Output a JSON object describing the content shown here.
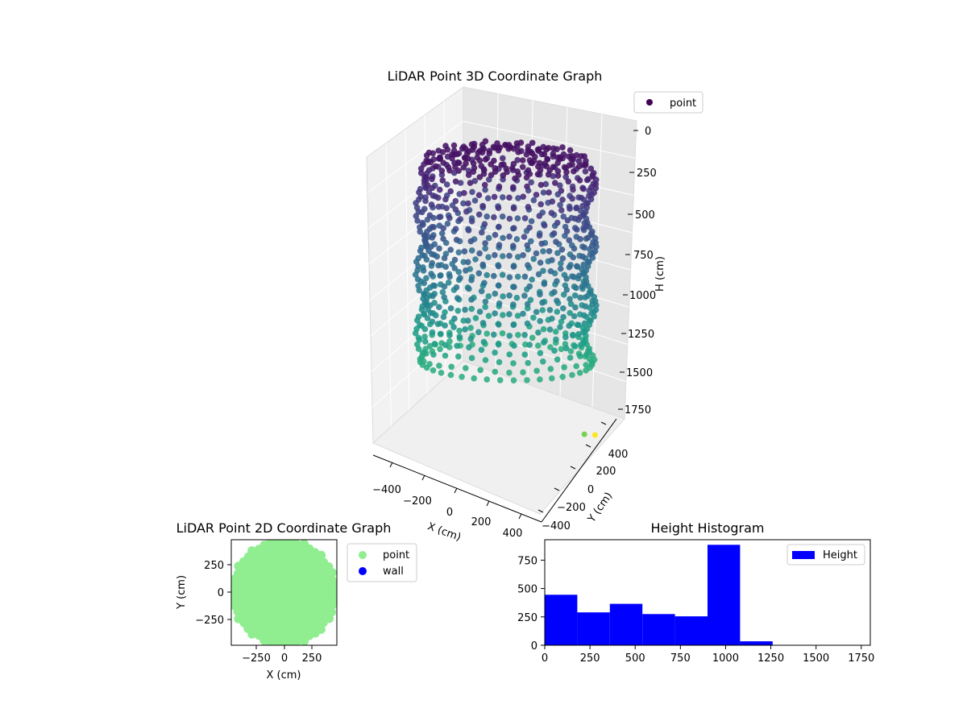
{
  "chart_data": [
    {
      "type": "scatter",
      "projection": "3d",
      "title": "LiDAR Point 3D Coordinate Graph",
      "xlabel": "X (cm)",
      "ylabel": "Y (cm)",
      "zlabel": "H (cm)",
      "xticks": [
        "−400",
        "−200",
        "0",
        "200",
        "400"
      ],
      "yticks": [
        "−400",
        "−200",
        "0",
        "200",
        "400"
      ],
      "zticks": [
        "0",
        "250",
        "500",
        "750",
        "1000",
        "1250",
        "1500",
        "1750"
      ],
      "zlim": [
        1850,
        0
      ],
      "legend": [
        {
          "label": "point",
          "color": "#440154"
        }
      ],
      "legend_position": "top-right",
      "colormap": "viridis",
      "cylinder": {
        "radius": 420,
        "h_top": 80,
        "h_bottom": 1080
      },
      "outliers": [
        {
          "x": 370,
          "y": -60,
          "h": 1500,
          "color": "#7ad151"
        },
        {
          "x": 430,
          "y": -180,
          "h": 1850,
          "color": "#fde725"
        }
      ]
    },
    {
      "type": "scatter",
      "title": "LiDAR Point 2D Coordinate Graph",
      "xlabel": "X (cm)",
      "ylabel": "Y (cm)",
      "xticks": [
        "−250",
        "0",
        "250"
      ],
      "yticks": [
        "250",
        "0",
        "−250"
      ],
      "xlim": [
        -480,
        480
      ],
      "ylim": [
        -480,
        480
      ],
      "point_radius": 480,
      "legend": [
        {
          "label": "point",
          "color": "#90ee90"
        },
        {
          "label": "wall",
          "color": "#0000ff"
        }
      ],
      "legend_position": "outside-right"
    },
    {
      "type": "bar",
      "title": "Height Histogram",
      "xlim": [
        0,
        1800
      ],
      "ylim": [
        0,
        930
      ],
      "xticks": [
        0,
        250,
        500,
        750,
        1000,
        1250,
        1500,
        1750
      ],
      "yticks": [
        0,
        250,
        500,
        750
      ],
      "bin_edges": [
        0,
        180,
        360,
        540,
        720,
        900,
        1080,
        1260,
        1440,
        1620,
        1800
      ],
      "values": [
        445,
        290,
        365,
        275,
        255,
        885,
        35,
        0,
        0,
        0
      ],
      "color": "#0000ff",
      "legend": [
        {
          "label": "Height",
          "color": "#0000ff"
        }
      ],
      "legend_position": "top-right"
    }
  ]
}
